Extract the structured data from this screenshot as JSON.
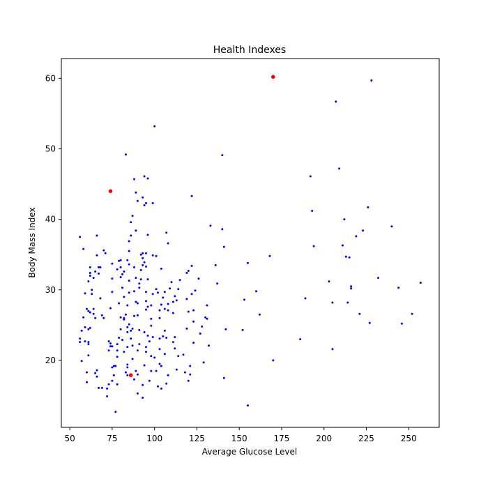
{
  "chart_data": {
    "type": "scatter",
    "title": "Health Indexes",
    "xlabel": "Average Glucose Level",
    "ylabel": "Body Mass Index",
    "xlim": [
      45,
      268
    ],
    "ylim": [
      10.5,
      62.8
    ],
    "xticks": [
      50,
      75,
      100,
      125,
      150,
      175,
      200,
      225,
      250
    ],
    "yticks": [
      20,
      30,
      40,
      50,
      60
    ],
    "grid": false,
    "series": [
      {
        "color": "#0000ff",
        "marker_size": "small",
        "points": [
          [
            56,
            37.5
          ],
          [
            58,
            35.8
          ],
          [
            59,
            29.5
          ],
          [
            60,
            27.3
          ],
          [
            57,
            24.2
          ],
          [
            58,
            26.1
          ],
          [
            59,
            24.7
          ],
          [
            56,
            23.1
          ],
          [
            56,
            22.6
          ],
          [
            57,
            19.9
          ],
          [
            59,
            22.7
          ],
          [
            61,
            22.3
          ],
          [
            61,
            22.6
          ],
          [
            60,
            16.9
          ],
          [
            60,
            18.3
          ],
          [
            61,
            20.7
          ],
          [
            61,
            24.4
          ],
          [
            62,
            24.6
          ],
          [
            62,
            26.8
          ],
          [
            61,
            27.0
          ],
          [
            61,
            31.2
          ],
          [
            62,
            32.0
          ],
          [
            62,
            32.4
          ],
          [
            62,
            33.2
          ],
          [
            63,
            30.0
          ],
          [
            63,
            29.4
          ],
          [
            64,
            27.3
          ],
          [
            64,
            26.6
          ],
          [
            65,
            26.0
          ],
          [
            65,
            18.2
          ],
          [
            66,
            18.6
          ],
          [
            66,
            17.7
          ],
          [
            64,
            31.7
          ],
          [
            65,
            32.6
          ],
          [
            66,
            34.9
          ],
          [
            66,
            37.7
          ],
          [
            67,
            32.3
          ],
          [
            67,
            33.2
          ],
          [
            68,
            33.2
          ],
          [
            68,
            28.8
          ],
          [
            69,
            26.4
          ],
          [
            70,
            35.6
          ],
          [
            70,
            26.0
          ],
          [
            71,
            35.2
          ],
          [
            72,
            16.0
          ],
          [
            69,
            16.1
          ],
          [
            67,
            16.1
          ],
          [
            73,
            16.6
          ],
          [
            72,
            14.9
          ],
          [
            73,
            21.4
          ],
          [
            74,
            22.0
          ],
          [
            73,
            22.7
          ],
          [
            74,
            27.4
          ],
          [
            75,
            29.7
          ],
          [
            75,
            31.6
          ],
          [
            75,
            33.7
          ],
          [
            74,
            22.4
          ],
          [
            75,
            22.0
          ],
          [
            75,
            19.0
          ],
          [
            75,
            17.1
          ],
          [
            76,
            17.9
          ],
          [
            76,
            19.2
          ],
          [
            77,
            19.2
          ],
          [
            77,
            12.7
          ],
          [
            78,
            16.6
          ],
          [
            78,
            20.5
          ],
          [
            78,
            21.4
          ],
          [
            78,
            22.3
          ],
          [
            79,
            23.2
          ],
          [
            80,
            24.4
          ],
          [
            80,
            26.1
          ],
          [
            79,
            28.1
          ],
          [
            80,
            31.8
          ],
          [
            80,
            33.2
          ],
          [
            79,
            34.1
          ],
          [
            80,
            34.2
          ],
          [
            78,
            32.9
          ],
          [
            81,
            32.2
          ],
          [
            81,
            30.3
          ],
          [
            82,
            29.0
          ],
          [
            82,
            26.0
          ],
          [
            82,
            25.8
          ],
          [
            83,
            26.5
          ],
          [
            81,
            22.9
          ],
          [
            82,
            21.2
          ],
          [
            83,
            18.3
          ],
          [
            84,
            17.9
          ],
          [
            84,
            19.0
          ],
          [
            84,
            19.4
          ],
          [
            84,
            21.9
          ],
          [
            84,
            24.0
          ],
          [
            84,
            24.7
          ],
          [
            85,
            25.1
          ],
          [
            86,
            23.1
          ],
          [
            86,
            24.2
          ],
          [
            84,
            27.8
          ],
          [
            85,
            29.6
          ],
          [
            85,
            31.3
          ],
          [
            85,
            33.6
          ],
          [
            85,
            35.5
          ],
          [
            86,
            37.7
          ],
          [
            86,
            39.6
          ],
          [
            87,
            40.5
          ],
          [
            85,
            36.9
          ],
          [
            84,
            34.2
          ],
          [
            83,
            49.2
          ],
          [
            82,
            32.6
          ],
          [
            88,
            45.7
          ],
          [
            89,
            43.8
          ],
          [
            90,
            42.6
          ],
          [
            89,
            38.4
          ],
          [
            88,
            33.2
          ],
          [
            89,
            31.7
          ],
          [
            88,
            29.8
          ],
          [
            89,
            28.3
          ],
          [
            88,
            26.3
          ],
          [
            87,
            24.5
          ],
          [
            87,
            22.1
          ],
          [
            87,
            20.2
          ],
          [
            88,
            17.3
          ],
          [
            89,
            18.5
          ],
          [
            90,
            15.3
          ],
          [
            90,
            18.0
          ],
          [
            90,
            21.4
          ],
          [
            91,
            22.3
          ],
          [
            91,
            24.3
          ],
          [
            90,
            26.4
          ],
          [
            90,
            28.1
          ],
          [
            91,
            30.3
          ],
          [
            91,
            30.9
          ],
          [
            92,
            31.5
          ],
          [
            92,
            32.8
          ],
          [
            93,
            33.5
          ],
          [
            93,
            34.5
          ],
          [
            92,
            35.0
          ],
          [
            93,
            35.2
          ],
          [
            94,
            33.9
          ],
          [
            93,
            43.1
          ],
          [
            94,
            42.0
          ],
          [
            95,
            42.3
          ],
          [
            94,
            46.1
          ],
          [
            96,
            45.8
          ],
          [
            96,
            37.8
          ],
          [
            95,
            35.2
          ],
          [
            95,
            33.3
          ],
          [
            96,
            31.5
          ],
          [
            95,
            29.7
          ],
          [
            95,
            28.4
          ],
          [
            96,
            27.6
          ],
          [
            95,
            27.2
          ],
          [
            94,
            24.0
          ],
          [
            96,
            23.5
          ],
          [
            95,
            21.9
          ],
          [
            95,
            21.2
          ],
          [
            94,
            19.3
          ],
          [
            93,
            16.5
          ],
          [
            93,
            14.7
          ],
          [
            97,
            17.1
          ],
          [
            98,
            18.5
          ],
          [
            98,
            20.6
          ],
          [
            97,
            22.7
          ],
          [
            99,
            23.3
          ],
          [
            98,
            24.9
          ],
          [
            98,
            25.9
          ],
          [
            98,
            27.8
          ],
          [
            99,
            29.4
          ],
          [
            99,
            34.9
          ],
          [
            99,
            42.3
          ],
          [
            100,
            53.2
          ],
          [
            101,
            34.8
          ],
          [
            101,
            30.1
          ],
          [
            102,
            29.6
          ],
          [
            103,
            27.1
          ],
          [
            103,
            26.0
          ],
          [
            103,
            23.1
          ],
          [
            103,
            21.6
          ],
          [
            103,
            19.5
          ],
          [
            104,
            19.2
          ],
          [
            104,
            16.0
          ],
          [
            102,
            16.3
          ],
          [
            101,
            18.5
          ],
          [
            100,
            20.4
          ],
          [
            104,
            27.9
          ],
          [
            105,
            28.9
          ],
          [
            106,
            27.3
          ],
          [
            106,
            29.7
          ],
          [
            106,
            24.2
          ],
          [
            105,
            23.4
          ],
          [
            106,
            20.9
          ],
          [
            107,
            16.7
          ],
          [
            108,
            17.9
          ],
          [
            107,
            23.2
          ],
          [
            108,
            27.1
          ],
          [
            108,
            28.0
          ],
          [
            109,
            30.2
          ],
          [
            107,
            38.1
          ],
          [
            108,
            36.6
          ],
          [
            104,
            33.0
          ],
          [
            110,
            31.1
          ],
          [
            111,
            28.3
          ],
          [
            111,
            26.7
          ],
          [
            112,
            29.1
          ],
          [
            111,
            22.6
          ],
          [
            112,
            21.7
          ],
          [
            113,
            18.7
          ],
          [
            112,
            23.3
          ],
          [
            113,
            28.5
          ],
          [
            114,
            30.1
          ],
          [
            115,
            31.4
          ],
          [
            114,
            20.6
          ],
          [
            117,
            20.8
          ],
          [
            118,
            18.3
          ],
          [
            119,
            24.5
          ],
          [
            119,
            28.7
          ],
          [
            119,
            32.4
          ],
          [
            120,
            32.7
          ],
          [
            120,
            26.9
          ],
          [
            121,
            19.2
          ],
          [
            120,
            17.1
          ],
          [
            121,
            18.0
          ],
          [
            122,
            43.3
          ],
          [
            122,
            33.4
          ],
          [
            122,
            29.4
          ],
          [
            123,
            27.1
          ],
          [
            123,
            25.5
          ],
          [
            123,
            22.5
          ],
          [
            124,
            29.9
          ],
          [
            126,
            31.6
          ],
          [
            127,
            23.8
          ],
          [
            128,
            24.8
          ],
          [
            129,
            19.7
          ],
          [
            130,
            26.1
          ],
          [
            131,
            27.8
          ],
          [
            131,
            25.9
          ],
          [
            132,
            22.1
          ],
          [
            133,
            39.1
          ],
          [
            136,
            33.5
          ],
          [
            137,
            30.9
          ],
          [
            140,
            38.6
          ],
          [
            140,
            49.1
          ],
          [
            141,
            36.1
          ],
          [
            141,
            17.5
          ],
          [
            142,
            24.4
          ],
          [
            152,
            24.3
          ],
          [
            153,
            28.6
          ],
          [
            155,
            33.8
          ],
          [
            155,
            13.6
          ],
          [
            160,
            29.8
          ],
          [
            162,
            26.5
          ],
          [
            168,
            34.8
          ],
          [
            170,
            20.0
          ],
          [
            186,
            23.0
          ],
          [
            189,
            28.8
          ],
          [
            192,
            46.1
          ],
          [
            193,
            41.2
          ],
          [
            194,
            36.2
          ],
          [
            203,
            31.2
          ],
          [
            205,
            28.2
          ],
          [
            205,
            21.6
          ],
          [
            207,
            56.7
          ],
          [
            209,
            47.2
          ],
          [
            211,
            36.3
          ],
          [
            212,
            40.0
          ],
          [
            213,
            34.7
          ],
          [
            214,
            28.2
          ],
          [
            215,
            34.6
          ],
          [
            216,
            30.5
          ],
          [
            216,
            30.2
          ],
          [
            219,
            37.6
          ],
          [
            221,
            26.6
          ],
          [
            223,
            38.4
          ],
          [
            226,
            41.7
          ],
          [
            227,
            25.3
          ],
          [
            228,
            59.7
          ],
          [
            232,
            31.7
          ],
          [
            240,
            39.0
          ],
          [
            244,
            30.3
          ],
          [
            246,
            25.2
          ],
          [
            252,
            26.6
          ],
          [
            257,
            31.0
          ]
        ]
      },
      {
        "color": "#ff0000",
        "marker_size": "large",
        "points": [
          [
            170,
            60.2
          ],
          [
            74,
            44.0
          ],
          [
            86,
            17.9
          ]
        ]
      }
    ]
  }
}
